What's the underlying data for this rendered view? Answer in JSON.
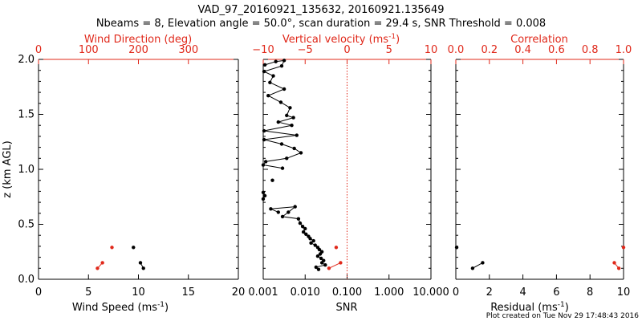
{
  "title_line1": "VAD_97_20160921_135632, 20160921.135649",
  "title_line2": "Nbeams = 8, Elevation angle = 50.0°, scan duration = 29.4 s, SNR Threshold = 0.008",
  "footer": "Plot created on Tue Nov 29 17:48:43 2016",
  "colors": {
    "axis": "#000000",
    "accent": "#e0281a"
  },
  "chart_data": [
    {
      "type": "scatter",
      "panel": "wind",
      "ylabel": "z (km AGL)",
      "ylim": [
        0,
        2
      ],
      "yticks": [
        "0.0",
        "0.5",
        "1.0",
        "1.5",
        "2.0"
      ],
      "xlabel_bottom": "Wind Speed (ms",
      "xlabel_bottom_sup": "-1",
      "xlabel_bottom_tail": ")",
      "xlim_bottom": [
        0,
        20
      ],
      "xticks_bottom": [
        "0",
        "5",
        "10",
        "15",
        "20"
      ],
      "xlabel_top": "Wind Direction (deg)",
      "xlim_top": [
        0,
        400
      ],
      "xticks_top": [
        "0",
        "100",
        "200",
        "300"
      ],
      "series": [
        {
          "name": "Wind Speed",
          "color": "black",
          "segments": [
            [
              [
                9.5,
                0.29
              ]
            ],
            [
              [
                10.2,
                0.15
              ],
              [
                10.5,
                0.1
              ]
            ]
          ]
        },
        {
          "name": "Wind Direction",
          "color": "red",
          "segments": [
            [
              [
                147,
                0.29
              ]
            ],
            [
              [
                128,
                0.15
              ],
              [
                118,
                0.1
              ]
            ]
          ]
        }
      ]
    },
    {
      "type": "line",
      "panel": "vertical",
      "ylim": [
        0,
        2
      ],
      "xlabel_bottom": "SNR",
      "xlim_bottom_log": [
        0.001,
        10
      ],
      "xticks_bottom": [
        "0.001",
        "0.010",
        "0.100",
        "1.000",
        "10.000"
      ],
      "xlabel_top": "Vertical velocity (ms",
      "xlabel_top_sup": "-1",
      "xlabel_top_tail": ")",
      "xlim_top": [
        -10,
        10
      ],
      "xticks_top": [
        "−10",
        "−5",
        "0",
        "5",
        "10"
      ],
      "zero_line_at": 0,
      "series": [
        {
          "name": "Vertical velocity",
          "color": "black",
          "segments": [
            [
              [
                -9.8,
                1.95
              ],
              [
                -8.5,
                1.98
              ],
              [
                -7.5,
                1.99
              ],
              [
                -7.8,
                1.94
              ],
              [
                -9.9,
                1.89
              ],
              [
                -8.8,
                1.85
              ],
              [
                -9.2,
                1.79
              ],
              [
                -7.5,
                1.73
              ],
              [
                -9.4,
                1.67
              ],
              [
                -7.9,
                1.61
              ],
              [
                -6.8,
                1.56
              ],
              [
                -7.2,
                1.49
              ],
              [
                -6.4,
                1.47
              ],
              [
                -8.2,
                1.43
              ],
              [
                -6.6,
                1.4
              ],
              [
                -9.9,
                1.35
              ],
              [
                -6.0,
                1.31
              ],
              [
                -9.9,
                1.27
              ],
              [
                -7.8,
                1.23
              ],
              [
                -6.3,
                1.19
              ],
              [
                -5.5,
                1.15
              ],
              [
                -7.2,
                1.1
              ],
              [
                -9.7,
                1.07
              ],
              [
                -10.0,
                1.04
              ],
              [
                -7.7,
                1.01
              ]
            ],
            [
              [
                -8.9,
                0.9
              ]
            ],
            [
              [
                -10.0,
                0.73
              ],
              [
                -9.8,
                0.76
              ],
              [
                -10.0,
                0.79
              ]
            ],
            [
              [
                -8.2,
                0.61
              ],
              [
                -9.1,
                0.64
              ],
              [
                -6.2,
                0.66
              ],
              [
                -7.0,
                0.61
              ],
              [
                -7.7,
                0.57
              ],
              [
                -5.8,
                0.55
              ],
              [
                -5.6,
                0.51
              ],
              [
                -5.3,
                0.48
              ],
              [
                -5.0,
                0.46
              ],
              [
                -5.2,
                0.43
              ],
              [
                -4.9,
                0.41
              ],
              [
                -4.6,
                0.39
              ],
              [
                -4.4,
                0.37
              ],
              [
                -4.0,
                0.35
              ],
              [
                -4.3,
                0.33
              ],
              [
                -3.8,
                0.31
              ],
              [
                -3.5,
                0.29
              ],
              [
                -3.3,
                0.27
              ],
              [
                -3.0,
                0.25
              ],
              [
                -3.2,
                0.23
              ],
              [
                -3.5,
                0.21
              ],
              [
                -3.1,
                0.19
              ],
              [
                -2.8,
                0.17
              ],
              [
                -3.0,
                0.15
              ],
              [
                -2.6,
                0.13
              ],
              [
                -3.7,
                0.11
              ],
              [
                -3.4,
                0.09
              ]
            ]
          ]
        },
        {
          "name": "SNR",
          "color": "red",
          "segments": [
            [
              [
                0.055,
                0.29
              ]
            ],
            [
              [
                0.07,
                0.15
              ],
              [
                0.037,
                0.1
              ]
            ]
          ]
        }
      ]
    },
    {
      "type": "scatter",
      "panel": "fit",
      "ylim": [
        0,
        2
      ],
      "xlabel_bottom": "Residual (ms",
      "xlabel_bottom_sup": "-1",
      "xlabel_bottom_tail": ")",
      "xlim_bottom": [
        0,
        10
      ],
      "xticks_bottom": [
        "0",
        "2",
        "4",
        "6",
        "8",
        "10"
      ],
      "xlabel_top": "Correlation",
      "xlim_top": [
        0,
        1
      ],
      "xticks_top": [
        "0.0",
        "0.2",
        "0.4",
        "0.6",
        "0.8",
        "1.0"
      ],
      "series": [
        {
          "name": "Residual",
          "color": "black",
          "segments": [
            [
              [
                0.05,
                0.29
              ]
            ],
            [
              [
                1.6,
                0.15
              ],
              [
                1.0,
                0.1
              ]
            ]
          ]
        },
        {
          "name": "Correlation",
          "color": "red",
          "segments": [
            [
              [
                1.0,
                0.29
              ]
            ],
            [
              [
                0.945,
                0.15
              ],
              [
                0.972,
                0.1
              ]
            ]
          ]
        }
      ]
    }
  ]
}
